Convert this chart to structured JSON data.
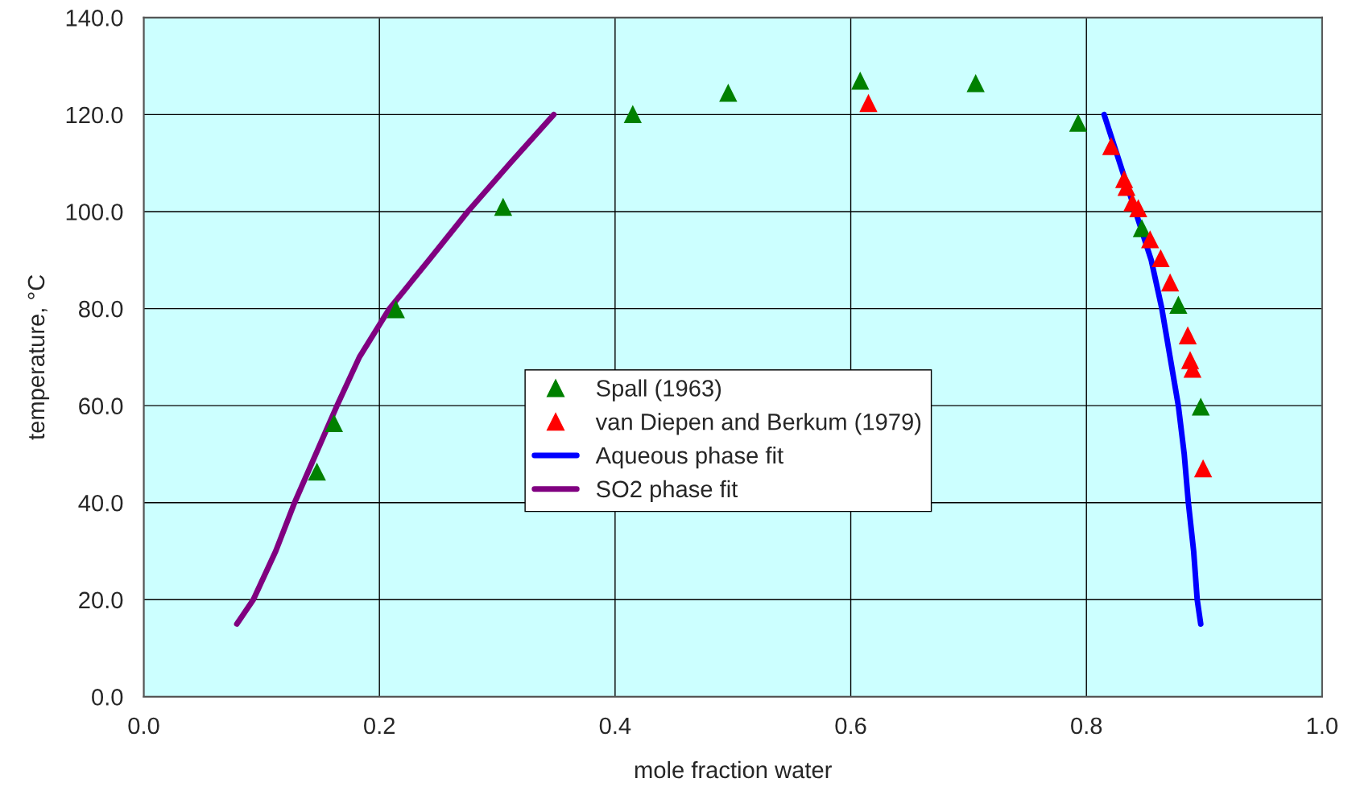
{
  "chart_data": {
    "type": "scatter",
    "xlabel": "mole fraction water",
    "ylabel": "temperature, °C",
    "xlim": [
      0,
      1
    ],
    "ylim": [
      0,
      140
    ],
    "xticks": [
      {
        "value": 0,
        "label": "0.0"
      },
      {
        "value": 0.2,
        "label": "0.2"
      },
      {
        "value": 0.4,
        "label": "0.4"
      },
      {
        "value": 0.6,
        "label": "0.6"
      },
      {
        "value": 0.8,
        "label": "0.8"
      },
      {
        "value": 1,
        "label": "1.0"
      }
    ],
    "yticks": [
      {
        "value": 0,
        "label": "0.0"
      },
      {
        "value": 20,
        "label": "20.0"
      },
      {
        "value": 40,
        "label": "40.0"
      },
      {
        "value": 60,
        "label": "60.0"
      },
      {
        "value": 80,
        "label": "80.0"
      },
      {
        "value": 100,
        "label": "100.0"
      },
      {
        "value": 120,
        "label": "120.0"
      },
      {
        "value": 140,
        "label": "140.0"
      }
    ],
    "grid": true,
    "legend": "center",
    "series": [
      {
        "name": "Spall (1963)",
        "marker": "triangle",
        "color": "#008000",
        "x": [
          0.147,
          0.1615,
          0.214,
          0.305,
          0.415,
          0.496,
          0.608,
          0.706,
          0.793,
          0.847,
          0.878,
          0.897
        ],
        "values": [
          46.4,
          56.4,
          79.9,
          101.0,
          120.1,
          124.5,
          127.0,
          126.5,
          118.3,
          96.6,
          80.8,
          59.8
        ]
      },
      {
        "name": "van Diepen and Berkum (1979)",
        "marker": "triangle",
        "color": "#ff0000",
        "x": [
          0.615,
          0.821,
          0.832,
          0.834,
          0.839,
          0.844,
          0.854,
          0.863,
          0.871,
          0.886,
          0.888,
          0.89,
          0.899
        ],
        "values": [
          122.4,
          113.5,
          106.7,
          105.1,
          101.9,
          100.7,
          94.3,
          90.4,
          85.4,
          74.5,
          69.4,
          67.6,
          47.1
        ]
      },
      {
        "name": "Aqueous phase fit",
        "type": "line",
        "line_style": "solid",
        "color": "#0000ff",
        "x": [
          0.815,
          0.855,
          0.864,
          0.871,
          0.878,
          0.883,
          0.8865,
          0.891,
          0.894,
          0.897
        ],
        "values": [
          120,
          90,
          80,
          70,
          60,
          50,
          40,
          30,
          20,
          15
        ]
      },
      {
        "name": "SO2 phase fit",
        "type": "line",
        "line_style": "solid",
        "color": "#800080",
        "x": [
          0.079,
          0.093,
          0.112,
          0.128,
          0.164,
          0.183,
          0.2085,
          0.242,
          0.275,
          0.311,
          0.348
        ],
        "values": [
          15,
          20,
          30,
          40,
          60,
          70,
          80,
          90,
          100,
          110,
          120
        ]
      }
    ]
  }
}
